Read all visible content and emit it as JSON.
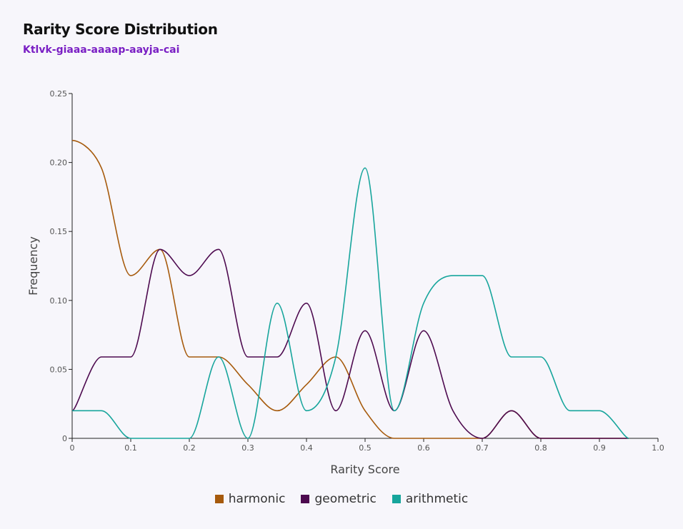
{
  "header": {
    "title": "Rarity Score Distribution",
    "subtitle": "Ktlvk-giaaa-aaaap-aayja-cai"
  },
  "chart_data": {
    "type": "line",
    "title": "Rarity Score Distribution",
    "subtitle": "Ktlvk-giaaa-aaaap-aayja-cai",
    "xlabel": "Rarity Score",
    "ylabel": "Frequency",
    "xlim": [
      0,
      1.0
    ],
    "ylim": [
      0,
      0.25
    ],
    "x_ticks": [
      "0",
      "0.1",
      "0.2",
      "0.3",
      "0.4",
      "0.5",
      "0.6",
      "0.7",
      "0.8",
      "0.9",
      "1.0"
    ],
    "y_ticks": [
      "0",
      "0.05",
      "0.10",
      "0.15",
      "0.20",
      "0.25"
    ],
    "grid": false,
    "legend_position": "bottom-center",
    "x": [
      0,
      0.05,
      0.1,
      0.15,
      0.2,
      0.25,
      0.3,
      0.35,
      0.4,
      0.45,
      0.5,
      0.55,
      0.6,
      0.65,
      0.7,
      0.75,
      0.8,
      0.85,
      0.9,
      0.95
    ],
    "series": [
      {
        "name": "harmonic",
        "color": "#a65a0c",
        "values": [
          0.216,
          0.196,
          0.118,
          0.137,
          0.059,
          0.059,
          0.039,
          0.02,
          0.039,
          0.059,
          0.02,
          0.0,
          0.0,
          0.0,
          0.0,
          0.02,
          0.0,
          0.0,
          0.0,
          0.0
        ]
      },
      {
        "name": "geometric",
        "color": "#4d0a4f",
        "values": [
          0.02,
          0.059,
          0.059,
          0.137,
          0.118,
          0.137,
          0.059,
          0.059,
          0.098,
          0.02,
          0.078,
          0.02,
          0.078,
          0.02,
          0.0,
          0.02,
          0.0,
          0.0,
          0.0,
          0.0
        ]
      },
      {
        "name": "arithmetic",
        "color": "#17a59c",
        "values": [
          0.02,
          0.02,
          0.0,
          0.0,
          0.0,
          0.059,
          0.0,
          0.098,
          0.02,
          0.059,
          0.196,
          0.02,
          0.098,
          0.118,
          0.118,
          0.059,
          0.059,
          0.02,
          0.02,
          0.0
        ]
      }
    ]
  }
}
